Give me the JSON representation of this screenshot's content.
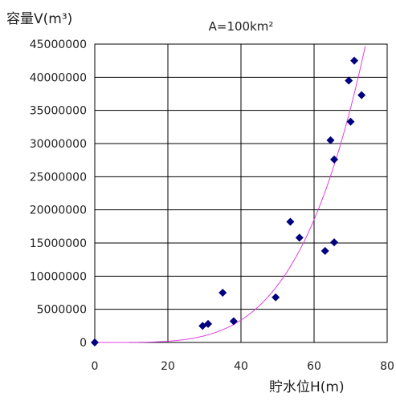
{
  "chart_data": {
    "type": "scatter",
    "title": "A=100km²",
    "xlabel": "貯水位H(m)",
    "ylabel": "容量V(m³)",
    "xlim": [
      0,
      80
    ],
    "ylim": [
      0,
      45000000
    ],
    "x_ticks": [
      "0",
      "20",
      "40",
      "60",
      "80"
    ],
    "y_ticks": [
      "0",
      "5000000",
      "10000000",
      "15000000",
      "20000000",
      "25000000",
      "30000000",
      "35000000",
      "40000000",
      "45000000"
    ],
    "grid": true,
    "legend": "none",
    "series": [
      {
        "marker": "diamond",
        "color": "#00007f",
        "points": [
          {
            "x": 0,
            "y": 0
          },
          {
            "x": 29.5,
            "y": 2500000
          },
          {
            "x": 31,
            "y": 2800000
          },
          {
            "x": 35,
            "y": 7500000
          },
          {
            "x": 38,
            "y": 3200000
          },
          {
            "x": 49.5,
            "y": 6800000
          },
          {
            "x": 53.5,
            "y": 18200000
          },
          {
            "x": 56,
            "y": 15800000
          },
          {
            "x": 63,
            "y": 13800000
          },
          {
            "x": 64.5,
            "y": 30500000
          },
          {
            "x": 65.5,
            "y": 15100000
          },
          {
            "x": 65.5,
            "y": 27600000
          },
          {
            "x": 69.5,
            "y": 39500000
          },
          {
            "x": 70,
            "y": 33300000
          },
          {
            "x": 71,
            "y": 42500000
          },
          {
            "x": 73,
            "y": 37300000
          }
        ]
      }
    ],
    "trendline": {
      "type": "power",
      "color": "#e040e0",
      "coefficient": 0.63,
      "exponent": 4.2
    }
  }
}
